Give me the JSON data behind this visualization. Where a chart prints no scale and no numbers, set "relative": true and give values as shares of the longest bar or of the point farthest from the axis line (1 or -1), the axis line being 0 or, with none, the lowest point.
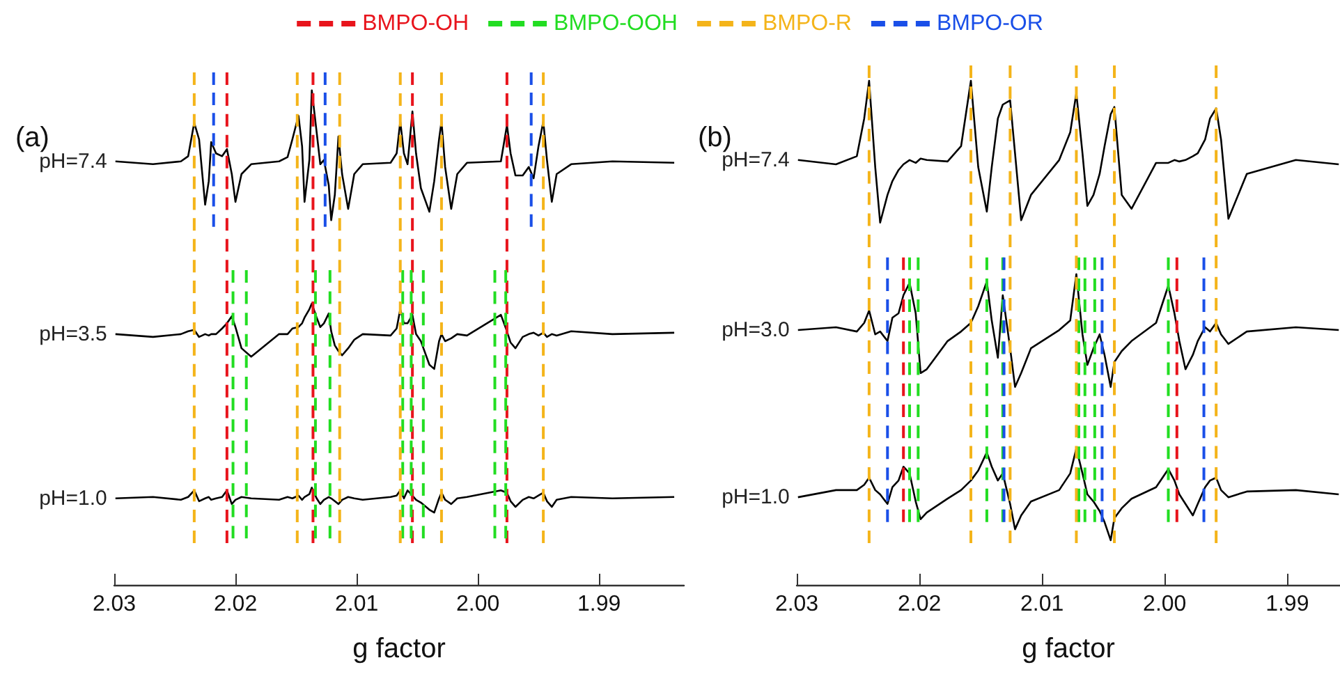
{
  "chart_data": [
    {
      "type": "line",
      "title": "(a)",
      "xlabel": "g factor",
      "relative": true,
      "legend": "top",
      "xlim": [
        2.03,
        1.983
      ],
      "xticks": [
        2.03,
        2.02,
        2.01,
        {
          "value": 2.0,
          "label": "2.00"
        },
        1.99
      ],
      "x": [
        2.0299,
        2.0268,
        2.0245,
        2.0239,
        2.0234,
        2.023,
        2.0225,
        2.0222,
        2.022,
        2.0216,
        2.0211,
        2.0207,
        2.0203,
        2.02,
        2.0195,
        2.0187,
        2.0164,
        2.0157,
        2.0153,
        2.0148,
        2.0145,
        2.0143,
        2.0139,
        2.0137,
        2.0133,
        2.013,
        2.0127,
        2.0123,
        2.0121,
        2.0118,
        2.0115,
        2.0112,
        2.0107,
        2.0102,
        2.0095,
        2.0072,
        2.0067,
        2.0064,
        2.0061,
        2.0058,
        2.0054,
        2.0051,
        2.0047,
        2.004,
        2.0036,
        2.0032,
        2.003,
        2.0027,
        2.0022,
        2.0017,
        2.0009,
        1.9981,
        1.9976,
        1.9973,
        1.9969,
        1.9963,
        1.9958,
        1.9954,
        1.995,
        1.9946,
        1.9943,
        1.9939,
        1.9935,
        1.9923,
        1.9889,
        1.9838
      ],
      "series": [
        {
          "name": "pH=7.4",
          "color": "#000000",
          "values": [
            0.811,
            0.805,
            0.811,
            0.822,
            0.893,
            0.858,
            0.719,
            0.769,
            0.852,
            0.828,
            0.822,
            0.837,
            0.784,
            0.725,
            0.784,
            0.805,
            0.811,
            0.82,
            0.858,
            0.908,
            0.843,
            0.725,
            0.814,
            0.962,
            0.873,
            0.805,
            0.814,
            0.76,
            0.686,
            0.74,
            0.864,
            0.784,
            0.71,
            0.784,
            0.805,
            0.808,
            0.828,
            0.896,
            0.828,
            0.805,
            0.917,
            0.828,
            0.754,
            0.704,
            0.769,
            0.858,
            0.896,
            0.799,
            0.71,
            0.784,
            0.808,
            0.811,
            0.888,
            0.828,
            0.781,
            0.781,
            0.799,
            0.775,
            0.843,
            0.896,
            0.814,
            0.725,
            0.784,
            0.805,
            0.811,
            0.808
          ]
        },
        {
          "name": "pH=3.5",
          "color": "#000000",
          "values": [
            0.444,
            0.438,
            0.444,
            0.45,
            0.453,
            0.438,
            0.444,
            0.441,
            0.444,
            0.444,
            0.456,
            0.467,
            0.482,
            0.459,
            0.414,
            0.396,
            0.444,
            0.444,
            0.456,
            0.459,
            0.467,
            0.479,
            0.497,
            0.509,
            0.479,
            0.459,
            0.467,
            0.488,
            0.45,
            0.42,
            0.408,
            0.399,
            0.414,
            0.432,
            0.444,
            0.441,
            0.456,
            0.497,
            0.467,
            0.467,
            0.485,
            0.444,
            0.429,
            0.379,
            0.37,
            0.429,
            0.444,
            0.429,
            0.435,
            0.444,
            0.441,
            0.485,
            0.45,
            0.426,
            0.414,
            0.438,
            0.444,
            0.447,
            0.441,
            0.447,
            0.438,
            0.444,
            0.441,
            0.45,
            0.444,
            0.447
          ]
        },
        {
          "name": "pH=1.0",
          "color": "#000000",
          "values": [
            0.095,
            0.098,
            0.092,
            0.098,
            0.112,
            0.089,
            0.095,
            0.098,
            0.092,
            0.095,
            0.098,
            0.112,
            0.083,
            0.092,
            0.098,
            0.095,
            0.092,
            0.098,
            0.095,
            0.101,
            0.092,
            0.098,
            0.104,
            0.118,
            0.095,
            0.083,
            0.092,
            0.098,
            0.095,
            0.089,
            0.083,
            0.092,
            0.098,
            0.095,
            0.092,
            0.098,
            0.101,
            0.112,
            0.095,
            0.112,
            0.101,
            0.092,
            0.086,
            0.071,
            0.065,
            0.095,
            0.107,
            0.092,
            0.083,
            0.095,
            0.098,
            0.112,
            0.107,
            0.089,
            0.077,
            0.092,
            0.098,
            0.095,
            0.101,
            0.107,
            0.089,
            0.077,
            0.092,
            0.098,
            0.095,
            0.098
          ]
        },
        {
          "name": "BMPO-OH",
          "color": "#e8141c",
          "type": "line",
          "line_style": "dashed",
          "x": [
            2.0207,
            2.0207
          ],
          "values": [
            1,
            0
          ]
        },
        {
          "color": "#e8141c",
          "type": "line",
          "line_style": "dashed",
          "x": [
            2.0136,
            2.0136
          ],
          "values": [
            1,
            0
          ]
        },
        {
          "color": "#e8141c",
          "type": "line",
          "line_style": "dashed",
          "x": [
            2.0054,
            2.0054
          ],
          "values": [
            1,
            0
          ]
        },
        {
          "color": "#e8141c",
          "type": "line",
          "line_style": "dashed",
          "x": [
            1.9976,
            1.9976
          ],
          "values": [
            1,
            0
          ]
        },
        {
          "name": "BMPO-OOH",
          "color": "#22dd22",
          "type": "line",
          "line_style": "dashed",
          "x": [
            2.0202,
            2.0202
          ],
          "values": [
            0.58,
            0.01
          ]
        },
        {
          "color": "#22dd22",
          "type": "line",
          "line_style": "dashed",
          "x": [
            2.0191,
            2.0191
          ],
          "values": [
            0.58,
            0.01
          ]
        },
        {
          "color": "#22dd22",
          "type": "line",
          "line_style": "dashed",
          "x": [
            2.0134,
            2.0134
          ],
          "values": [
            0.58,
            0.01
          ]
        },
        {
          "color": "#22dd22",
          "type": "line",
          "line_style": "dashed",
          "x": [
            2.0122,
            2.0122
          ],
          "values": [
            0.58,
            0.01
          ]
        },
        {
          "color": "#22dd22",
          "type": "line",
          "line_style": "dashed",
          "x": [
            2.0062,
            2.0062
          ],
          "values": [
            0.58,
            0.01
          ]
        },
        {
          "color": "#22dd22",
          "type": "line",
          "line_style": "dashed",
          "x": [
            2.0055,
            2.0055
          ],
          "values": [
            0.58,
            0.01
          ]
        },
        {
          "color": "#22dd22",
          "type": "line",
          "line_style": "dashed",
          "x": [
            2.0045,
            2.0045
          ],
          "values": [
            0.58,
            0.01
          ]
        },
        {
          "color": "#22dd22",
          "type": "line",
          "line_style": "dashed",
          "x": [
            1.9986,
            1.9986
          ],
          "values": [
            0.58,
            0.01
          ]
        },
        {
          "color": "#22dd22",
          "type": "line",
          "line_style": "dashed",
          "x": [
            1.9977,
            1.9977
          ],
          "values": [
            0.58,
            0.01
          ]
        },
        {
          "name": "BMPO-R",
          "color": "#f4b41a",
          "type": "line",
          "line_style": "dashed",
          "x": [
            2.0234,
            2.0234
          ],
          "values": [
            1,
            0
          ]
        },
        {
          "color": "#f4b41a",
          "type": "line",
          "line_style": "dashed",
          "x": [
            2.0149,
            2.0149
          ],
          "values": [
            1,
            0
          ]
        },
        {
          "color": "#f4b41a",
          "type": "line",
          "line_style": "dashed",
          "x": [
            2.0114,
            2.0114
          ],
          "values": [
            1,
            0
          ]
        },
        {
          "color": "#f4b41a",
          "type": "line",
          "line_style": "dashed",
          "x": [
            2.0064,
            2.0064
          ],
          "values": [
            1,
            0
          ]
        },
        {
          "color": "#f4b41a",
          "type": "line",
          "line_style": "dashed",
          "x": [
            2.003,
            2.003
          ],
          "values": [
            1,
            0
          ]
        },
        {
          "color": "#f4b41a",
          "type": "line",
          "line_style": "dashed",
          "x": [
            1.9946,
            1.9946
          ],
          "values": [
            1,
            0
          ]
        },
        {
          "name": "BMPO-OR",
          "color": "#1a4fe8",
          "type": "line",
          "line_style": "dashed",
          "x": [
            2.0218,
            2.0218
          ],
          "values": [
            1,
            0.672
          ]
        },
        {
          "color": "#1a4fe8",
          "type": "line",
          "line_style": "dashed",
          "x": [
            2.0126,
            2.0126
          ],
          "values": [
            1,
            0.672
          ]
        },
        {
          "color": "#1a4fe8",
          "type": "line",
          "line_style": "dashed",
          "x": [
            1.9956,
            1.9956
          ],
          "values": [
            1,
            0.672
          ]
        }
      ]
    },
    {
      "type": "line",
      "title": "(b)",
      "xlabel": "g factor",
      "relative": true,
      "xlim": [
        2.03,
        1.9857
      ],
      "xticks": [
        2.03,
        2.02,
        2.01,
        {
          "value": 2.0,
          "label": "2.00"
        },
        1.99
      ],
      "x": [
        2.0299,
        2.0268,
        2.0251,
        2.0245,
        2.0241,
        2.0236,
        2.0232,
        2.0226,
        2.0222,
        2.0217,
        2.0213,
        2.0208,
        2.0203,
        2.0199,
        2.0194,
        2.0177,
        2.0166,
        2.0158,
        2.0152,
        2.0145,
        2.0141,
        2.0136,
        2.0132,
        2.0126,
        2.0122,
        2.0117,
        2.0109,
        2.0086,
        2.0077,
        2.0072,
        2.0067,
        2.0063,
        2.0058,
        2.0053,
        2.0049,
        2.0044,
        2.0041,
        2.0035,
        2.0027,
        2.0007,
        1.9997,
        1.9992,
        1.9988,
        1.9983,
        1.9977,
        1.9973,
        1.9967,
        1.9963,
        1.9958,
        1.9954,
        1.9948,
        1.9933,
        1.9893,
        1.9858
      ],
      "series": [
        {
          "name": "pH=7.4",
          "color": "#000000",
          "values": [
            0.802,
            0.793,
            0.81,
            0.889,
            0.968,
            0.787,
            0.671,
            0.729,
            0.758,
            0.781,
            0.793,
            0.802,
            0.796,
            0.805,
            0.802,
            0.799,
            0.831,
            0.968,
            0.787,
            0.694,
            0.787,
            0.889,
            0.918,
            0.927,
            0.816,
            0.676,
            0.729,
            0.802,
            0.86,
            0.942,
            0.816,
            0.706,
            0.729,
            0.773,
            0.831,
            0.898,
            0.913,
            0.729,
            0.7,
            0.796,
            0.796,
            0.802,
            0.799,
            0.802,
            0.81,
            0.816,
            0.845,
            0.889,
            0.91,
            0.845,
            0.679,
            0.773,
            0.802,
            0.793
          ]
        },
        {
          "name": "pH=3.0",
          "color": "#000000",
          "values": [
            0.446,
            0.452,
            0.443,
            0.461,
            0.487,
            0.437,
            0.443,
            0.423,
            0.472,
            0.481,
            0.519,
            0.545,
            0.481,
            0.356,
            0.364,
            0.423,
            0.443,
            0.461,
            0.496,
            0.548,
            0.466,
            0.388,
            0.519,
            0.408,
            0.327,
            0.356,
            0.408,
            0.446,
            0.466,
            0.563,
            0.437,
            0.373,
            0.408,
            0.437,
            0.394,
            0.327,
            0.379,
            0.402,
            0.423,
            0.461,
            0.539,
            0.481,
            0.423,
            0.364,
            0.394,
            0.423,
            0.452,
            0.443,
            0.461,
            0.437,
            0.417,
            0.443,
            0.452,
            0.446
          ]
        },
        {
          "name": "pH=1.0",
          "color": "#000000",
          "values": [
            0.096,
            0.111,
            0.111,
            0.122,
            0.137,
            0.111,
            0.102,
            0.082,
            0.117,
            0.131,
            0.16,
            0.146,
            0.087,
            0.05,
            0.064,
            0.093,
            0.111,
            0.131,
            0.152,
            0.19,
            0.16,
            0.131,
            0.146,
            0.082,
            0.029,
            0.058,
            0.087,
            0.111,
            0.146,
            0.198,
            0.146,
            0.102,
            0.087,
            0.067,
            0.044,
            0.006,
            0.052,
            0.073,
            0.093,
            0.117,
            0.155,
            0.131,
            0.102,
            0.082,
            0.058,
            0.082,
            0.117,
            0.131,
            0.137,
            0.111,
            0.096,
            0.108,
            0.111,
            0.102
          ]
        },
        {
          "color": "#e8141c",
          "type": "line",
          "line_style": "dashed",
          "x": [
            2.0213,
            2.0213
          ],
          "values": [
            0.598,
            0.044
          ]
        },
        {
          "color": "#e8141c",
          "type": "line",
          "line_style": "dashed",
          "x": [
            1.999,
            1.999
          ],
          "values": [
            0.598,
            0.044
          ]
        },
        {
          "color": "#22dd22",
          "type": "line",
          "line_style": "dashed",
          "x": [
            2.0208,
            2.0208
          ],
          "values": [
            0.598,
            0.044
          ]
        },
        {
          "color": "#22dd22",
          "type": "line",
          "line_style": "dashed",
          "x": [
            2.0201,
            2.0201
          ],
          "values": [
            0.598,
            0.044
          ]
        },
        {
          "color": "#22dd22",
          "type": "line",
          "line_style": "dashed",
          "x": [
            2.0145,
            2.0145
          ],
          "values": [
            0.598,
            0.044
          ]
        },
        {
          "color": "#22dd22",
          "type": "line",
          "line_style": "dashed",
          "x": [
            2.0132,
            2.0132
          ],
          "values": [
            0.598,
            0.044
          ]
        },
        {
          "color": "#22dd22",
          "type": "line",
          "line_style": "dashed",
          "x": [
            2.007,
            2.007
          ],
          "values": [
            0.598,
            0.044
          ]
        },
        {
          "color": "#22dd22",
          "type": "line",
          "line_style": "dashed",
          "x": [
            2.0065,
            2.0065
          ],
          "values": [
            0.598,
            0.044
          ]
        },
        {
          "color": "#22dd22",
          "type": "line",
          "line_style": "dashed",
          "x": [
            2.0057,
            2.0057
          ],
          "values": [
            0.598,
            0.044
          ]
        },
        {
          "color": "#22dd22",
          "type": "line",
          "line_style": "dashed",
          "x": [
            1.9997,
            1.9997
          ],
          "values": [
            0.598,
            0.044
          ]
        },
        {
          "color": "#f4b41a",
          "type": "line",
          "line_style": "dashed",
          "x": [
            2.0241,
            2.0241
          ],
          "values": [
            1,
            0
          ]
        },
        {
          "color": "#f4b41a",
          "type": "line",
          "line_style": "dashed",
          "x": [
            2.0158,
            2.0158
          ],
          "values": [
            1,
            0
          ]
        },
        {
          "color": "#f4b41a",
          "type": "line",
          "line_style": "dashed",
          "x": [
            2.0126,
            2.0126
          ],
          "values": [
            1,
            0
          ]
        },
        {
          "color": "#f4b41a",
          "type": "line",
          "line_style": "dashed",
          "x": [
            2.0072,
            2.0072
          ],
          "values": [
            1,
            0
          ]
        },
        {
          "color": "#f4b41a",
          "type": "line",
          "line_style": "dashed",
          "x": [
            2.0041,
            2.0041
          ],
          "values": [
            1,
            0
          ]
        },
        {
          "color": "#f4b41a",
          "type": "line",
          "line_style": "dashed",
          "x": [
            1.9958,
            1.9958
          ],
          "values": [
            1,
            0
          ]
        },
        {
          "color": "#1a4fe8",
          "type": "line",
          "line_style": "dashed",
          "x": [
            2.0226,
            2.0226
          ],
          "values": [
            0.598,
            0.044
          ]
        },
        {
          "color": "#1a4fe8",
          "type": "line",
          "line_style": "dashed",
          "x": [
            2.0131,
            2.0131
          ],
          "values": [
            0.598,
            0.044
          ]
        },
        {
          "color": "#1a4fe8",
          "type": "line",
          "line_style": "dashed",
          "x": [
            2.0051,
            2.0051
          ],
          "values": [
            0.598,
            0.044
          ]
        },
        {
          "color": "#1a4fe8",
          "type": "line",
          "line_style": "dashed",
          "x": [
            1.9968,
            1.9968
          ],
          "values": [
            0.598,
            0.044
          ]
        }
      ]
    }
  ]
}
